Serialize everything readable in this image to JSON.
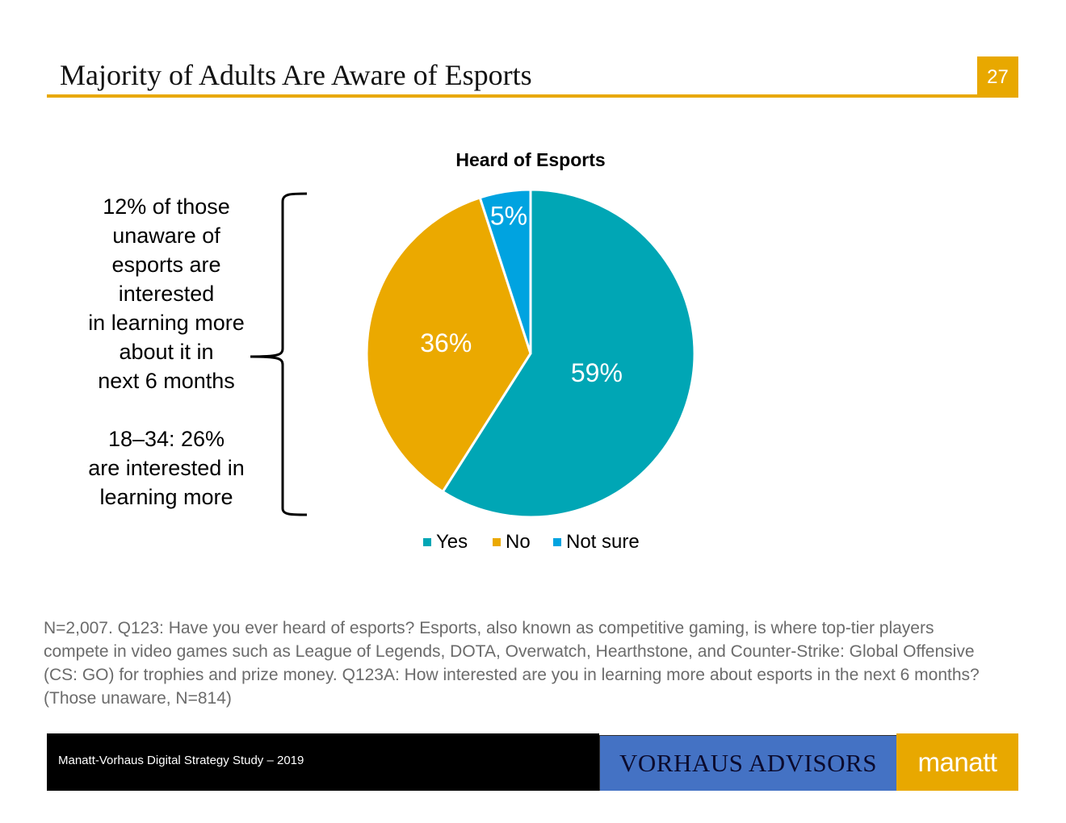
{
  "slide": {
    "title": "Majority of Adults Are Aware of Esports",
    "page_number": "27",
    "accent_color": "#E8A800"
  },
  "side_note": {
    "lines_1": [
      "12% of those",
      "unaware of",
      "esports are",
      "interested",
      "in learning more",
      "about it in",
      "next 6 months"
    ],
    "lines_2": [
      "18–34: 26%",
      "are interested in",
      "learning more"
    ]
  },
  "chart_data": {
    "type": "pie",
    "title": "Heard of Esports",
    "categories": [
      "Yes",
      "No",
      "Not sure"
    ],
    "values": [
      59,
      36,
      5
    ],
    "labels": [
      "59%",
      "36%",
      "5%"
    ],
    "colors": [
      "#00A6B5",
      "#EBA900",
      "#00A3E0"
    ],
    "legend_position": "bottom"
  },
  "footnote": "N=2,007. Q123: Have you ever heard of esports? Esports, also known as competitive gaming, is where top-tier players compete in video games such as League of Legends, DOTA, Overwatch, Hearthstone, and Counter-Strike: Global Offensive (CS: GO) for trophies and prize money. Q123A: How interested are you in learning more about esports in the next 6 months? (Those unaware, N=814)",
  "footer": {
    "study": "Manatt-Vorhaus Digital Strategy Study – 2019",
    "partner_logo": "VORHAUS ADVISORS",
    "brand_logo": "manatt"
  }
}
